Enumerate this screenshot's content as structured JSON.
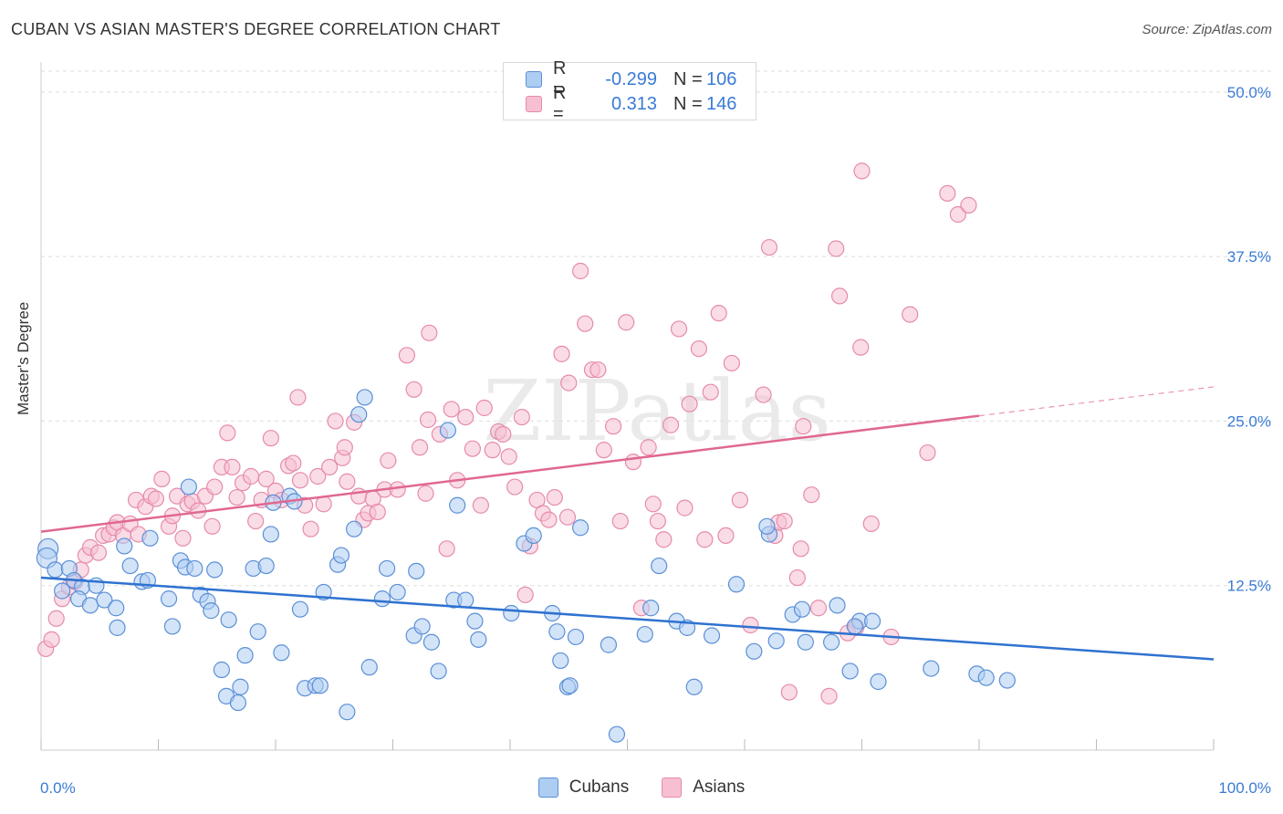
{
  "title": "CUBAN VS ASIAN MASTER'S DEGREE CORRELATION CHART",
  "source": "Source: ZipAtlas.com",
  "legend": {
    "rows": [
      {
        "r_label": "R =",
        "r_value": "-0.299",
        "n_label": "N =",
        "n_value": "106"
      },
      {
        "r_label": "R =",
        "r_value": "0.313",
        "n_label": "N =",
        "n_value": "146"
      }
    ]
  },
  "colors": {
    "cubans_fill": "#aecdf2",
    "cubans_stroke": "#5b8fd6",
    "cubans_line": "#2f72d0",
    "asians_fill": "#f6c0d2",
    "asians_stroke": "#e68bab",
    "asians_line": "#e06890",
    "tick_label": "#3a7bd5"
  },
  "watermark": "ZIPatlas",
  "chart_data": {
    "type": "scatter",
    "xlabel": "",
    "ylabel": "Master's Degree",
    "xlim": [
      0,
      100
    ],
    "ylim": [
      0,
      52
    ],
    "x_tick_labels": [
      {
        "value": 0,
        "label": "0.0%"
      },
      {
        "value": 100,
        "label": "100.0%"
      }
    ],
    "y_ticks": [
      {
        "value": 12.5,
        "label": "12.5%"
      },
      {
        "value": 25,
        "label": "25.0%"
      },
      {
        "value": 37.5,
        "label": "37.5%"
      },
      {
        "value": 50,
        "label": "50.0%"
      }
    ],
    "grid": true,
    "legend_position": "bottom-center",
    "series": [
      {
        "name": "Cubans",
        "trend": {
          "x": [
            0,
            100
          ],
          "y": [
            13.1,
            6.9
          ]
        },
        "points": [
          [
            0.6,
            15.3
          ],
          [
            0.5,
            14.6
          ],
          [
            1.2,
            13.7
          ],
          [
            2.4,
            13.8
          ],
          [
            1.8,
            12.1
          ],
          [
            2.8,
            12.9
          ],
          [
            3.5,
            12.4
          ],
          [
            3.2,
            11.5
          ],
          [
            4.2,
            11.0
          ],
          [
            5.4,
            11.4
          ],
          [
            4.7,
            12.5
          ],
          [
            6.4,
            10.8
          ],
          [
            7.1,
            15.5
          ],
          [
            6.5,
            9.3
          ],
          [
            7.6,
            14.0
          ],
          [
            8.6,
            12.8
          ],
          [
            9.1,
            12.9
          ],
          [
            10.9,
            11.5
          ],
          [
            9.3,
            16.1
          ],
          [
            11.2,
            9.4
          ],
          [
            11.9,
            14.4
          ],
          [
            12.3,
            13.9
          ],
          [
            12.6,
            20.0
          ],
          [
            13.1,
            13.8
          ],
          [
            13.6,
            11.8
          ],
          [
            14.2,
            11.3
          ],
          [
            14.5,
            10.6
          ],
          [
            14.8,
            13.7
          ],
          [
            15.4,
            6.1
          ],
          [
            16.0,
            9.9
          ],
          [
            15.8,
            4.1
          ],
          [
            16.8,
            3.6
          ],
          [
            17.0,
            4.8
          ],
          [
            17.4,
            7.2
          ],
          [
            18.1,
            13.8
          ],
          [
            18.5,
            9.0
          ],
          [
            19.2,
            14.0
          ],
          [
            19.6,
            16.4
          ],
          [
            19.8,
            18.8
          ],
          [
            20.5,
            7.4
          ],
          [
            21.2,
            19.3
          ],
          [
            21.6,
            18.9
          ],
          [
            22.1,
            10.7
          ],
          [
            22.5,
            4.7
          ],
          [
            23.4,
            4.9
          ],
          [
            23.8,
            4.9
          ],
          [
            24.1,
            12.0
          ],
          [
            25.3,
            14.1
          ],
          [
            25.6,
            14.8
          ],
          [
            26.1,
            2.9
          ],
          [
            26.7,
            16.8
          ],
          [
            27.1,
            25.5
          ],
          [
            27.6,
            26.8
          ],
          [
            28.0,
            6.3
          ],
          [
            29.1,
            11.5
          ],
          [
            29.5,
            13.8
          ],
          [
            30.4,
            12.0
          ],
          [
            31.8,
            8.7
          ],
          [
            32.0,
            13.6
          ],
          [
            32.5,
            9.4
          ],
          [
            33.3,
            8.2
          ],
          [
            33.9,
            6.0
          ],
          [
            34.7,
            24.3
          ],
          [
            35.5,
            18.6
          ],
          [
            35.2,
            11.4
          ],
          [
            36.2,
            11.4
          ],
          [
            37.0,
            9.8
          ],
          [
            37.3,
            8.4
          ],
          [
            40.1,
            10.4
          ],
          [
            41.2,
            15.7
          ],
          [
            42.0,
            16.3
          ],
          [
            43.6,
            10.4
          ],
          [
            44.0,
            9.0
          ],
          [
            44.3,
            6.8
          ],
          [
            44.9,
            4.8
          ],
          [
            45.1,
            4.9
          ],
          [
            45.6,
            8.6
          ],
          [
            46.0,
            16.9
          ],
          [
            48.4,
            8.0
          ],
          [
            49.1,
            1.2
          ],
          [
            51.5,
            8.8
          ],
          [
            52.0,
            10.8
          ],
          [
            52.7,
            14.0
          ],
          [
            54.2,
            9.8
          ],
          [
            55.1,
            9.3
          ],
          [
            55.7,
            4.8
          ],
          [
            57.2,
            8.7
          ],
          [
            59.3,
            12.6
          ],
          [
            60.8,
            7.5
          ],
          [
            62.1,
            16.4
          ],
          [
            61.9,
            17.0
          ],
          [
            62.7,
            8.3
          ],
          [
            64.1,
            10.3
          ],
          [
            64.9,
            10.7
          ],
          [
            65.2,
            8.2
          ],
          [
            67.4,
            8.2
          ],
          [
            67.9,
            11.0
          ],
          [
            69.0,
            6.0
          ],
          [
            69.8,
            9.8
          ],
          [
            70.9,
            9.8
          ],
          [
            71.4,
            5.2
          ],
          [
            75.9,
            6.2
          ],
          [
            79.8,
            5.8
          ],
          [
            80.6,
            5.5
          ],
          [
            82.4,
            5.3
          ],
          [
            69.4,
            9.4
          ]
        ]
      },
      {
        "name": "Asians",
        "trend": {
          "x": [
            0,
            80
          ],
          "y": [
            16.6,
            25.4
          ]
        },
        "trend_dashed": {
          "x": [
            80,
            100
          ],
          "y": [
            25.4,
            27.6
          ]
        },
        "points": [
          [
            0.4,
            7.7
          ],
          [
            0.9,
            8.4
          ],
          [
            1.3,
            10.0
          ],
          [
            1.8,
            11.5
          ],
          [
            2.4,
            12.4
          ],
          [
            2.9,
            12.8
          ],
          [
            3.4,
            13.7
          ],
          [
            3.8,
            14.8
          ],
          [
            4.2,
            15.4
          ],
          [
            4.9,
            15.0
          ],
          [
            5.3,
            16.3
          ],
          [
            5.8,
            16.4
          ],
          [
            6.2,
            16.9
          ],
          [
            6.5,
            17.3
          ],
          [
            7.0,
            16.3
          ],
          [
            7.6,
            17.2
          ],
          [
            8.3,
            16.4
          ],
          [
            8.1,
            19.0
          ],
          [
            8.9,
            18.5
          ],
          [
            9.4,
            19.3
          ],
          [
            9.8,
            19.1
          ],
          [
            10.3,
            20.6
          ],
          [
            10.9,
            17.0
          ],
          [
            11.2,
            17.8
          ],
          [
            11.6,
            19.3
          ],
          [
            12.1,
            16.1
          ],
          [
            12.5,
            18.7
          ],
          [
            12.9,
            18.9
          ],
          [
            13.4,
            18.2
          ],
          [
            14.0,
            19.3
          ],
          [
            14.8,
            20.0
          ],
          [
            14.6,
            17.0
          ],
          [
            15.4,
            21.5
          ],
          [
            15.9,
            24.1
          ],
          [
            16.3,
            21.5
          ],
          [
            16.7,
            19.2
          ],
          [
            17.2,
            20.3
          ],
          [
            17.9,
            20.8
          ],
          [
            18.3,
            17.4
          ],
          [
            18.8,
            19.0
          ],
          [
            19.2,
            20.6
          ],
          [
            19.6,
            23.7
          ],
          [
            20.0,
            19.7
          ],
          [
            20.5,
            19.0
          ],
          [
            21.1,
            21.6
          ],
          [
            21.5,
            21.8
          ],
          [
            22.1,
            20.5
          ],
          [
            21.9,
            26.8
          ],
          [
            22.5,
            18.6
          ],
          [
            23.0,
            16.8
          ],
          [
            23.6,
            20.8
          ],
          [
            24.1,
            18.7
          ],
          [
            24.6,
            21.5
          ],
          [
            25.1,
            25.0
          ],
          [
            25.7,
            22.2
          ],
          [
            26.1,
            20.4
          ],
          [
            25.9,
            23.0
          ],
          [
            26.7,
            24.9
          ],
          [
            27.1,
            19.3
          ],
          [
            27.5,
            17.5
          ],
          [
            27.9,
            18.0
          ],
          [
            28.3,
            19.1
          ],
          [
            28.7,
            18.1
          ],
          [
            29.3,
            19.8
          ],
          [
            29.6,
            22.0
          ],
          [
            30.4,
            19.8
          ],
          [
            31.2,
            30.0
          ],
          [
            31.8,
            27.4
          ],
          [
            32.3,
            23.0
          ],
          [
            32.8,
            19.5
          ],
          [
            33.1,
            31.7
          ],
          [
            34.0,
            24.0
          ],
          [
            34.6,
            15.3
          ],
          [
            35.0,
            25.9
          ],
          [
            35.5,
            20.5
          ],
          [
            36.2,
            25.3
          ],
          [
            36.8,
            22.9
          ],
          [
            37.5,
            18.6
          ],
          [
            37.8,
            26.0
          ],
          [
            38.5,
            22.8
          ],
          [
            39.0,
            24.2
          ],
          [
            39.4,
            24.0
          ],
          [
            39.9,
            22.3
          ],
          [
            40.4,
            20.0
          ],
          [
            41.0,
            25.3
          ],
          [
            41.3,
            11.8
          ],
          [
            41.7,
            15.5
          ],
          [
            42.3,
            19.0
          ],
          [
            42.8,
            18.0
          ],
          [
            43.3,
            17.5
          ],
          [
            43.8,
            19.2
          ],
          [
            44.4,
            30.1
          ],
          [
            44.9,
            17.7
          ],
          [
            46.0,
            36.4
          ],
          [
            46.4,
            32.4
          ],
          [
            47.0,
            28.9
          ],
          [
            47.5,
            28.9
          ],
          [
            48.0,
            22.8
          ],
          [
            48.8,
            24.6
          ],
          [
            49.4,
            17.4
          ],
          [
            49.9,
            32.5
          ],
          [
            50.5,
            21.9
          ],
          [
            51.2,
            10.8
          ],
          [
            51.8,
            23.0
          ],
          [
            52.2,
            18.7
          ],
          [
            52.6,
            17.4
          ],
          [
            53.1,
            16.0
          ],
          [
            53.7,
            24.7
          ],
          [
            54.4,
            32.0
          ],
          [
            54.9,
            18.4
          ],
          [
            55.3,
            26.3
          ],
          [
            56.1,
            30.5
          ],
          [
            56.6,
            16.0
          ],
          [
            57.1,
            27.2
          ],
          [
            57.8,
            33.2
          ],
          [
            58.4,
            16.3
          ],
          [
            58.9,
            29.4
          ],
          [
            59.6,
            19.0
          ],
          [
            60.5,
            9.5
          ],
          [
            61.6,
            27.0
          ],
          [
            62.1,
            38.2
          ],
          [
            62.6,
            16.3
          ],
          [
            62.9,
            17.3
          ],
          [
            63.4,
            17.4
          ],
          [
            64.5,
            13.1
          ],
          [
            65.0,
            24.6
          ],
          [
            64.8,
            15.3
          ],
          [
            65.7,
            19.4
          ],
          [
            66.3,
            10.8
          ],
          [
            67.8,
            38.1
          ],
          [
            68.1,
            34.5
          ],
          [
            68.8,
            8.9
          ],
          [
            69.5,
            9.3
          ],
          [
            69.9,
            30.6
          ],
          [
            70.0,
            44.0
          ],
          [
            70.8,
            17.2
          ],
          [
            72.5,
            8.6
          ],
          [
            74.1,
            33.1
          ],
          [
            75.6,
            22.6
          ],
          [
            77.3,
            42.3
          ],
          [
            78.2,
            40.7
          ],
          [
            79.1,
            41.4
          ],
          [
            63.8,
            4.4
          ],
          [
            67.2,
            4.1
          ],
          [
            33.0,
            25.1
          ],
          [
            45.0,
            27.9
          ]
        ]
      }
    ]
  }
}
